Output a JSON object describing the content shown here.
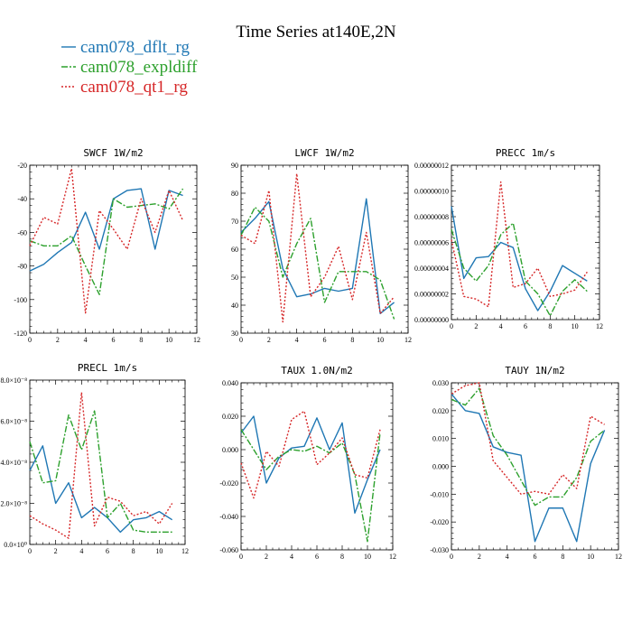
{
  "title": "Time Series at140E,2N",
  "colors": {
    "dflt": "#1f77b4",
    "expldiff": "#2ca02c",
    "qt1": "#d62728"
  },
  "legend": [
    {
      "label": "cam078_dflt_rg",
      "color": "#1f77b4",
      "dash": "solid"
    },
    {
      "label": "cam078_expldiff",
      "color": "#2ca02c",
      "dash": "dashdot"
    },
    {
      "label": "cam078_qt1_rg",
      "color": "#d62728",
      "dash": "dotted"
    }
  ],
  "chart_data": [
    {
      "type": "line",
      "title": "SWCF   1W/m2",
      "x": [
        0,
        1,
        2,
        3,
        4,
        5,
        6,
        7,
        8,
        9,
        10,
        11
      ],
      "xlim": [
        0,
        12
      ],
      "xticks": [
        0,
        2,
        4,
        6,
        8,
        10,
        12
      ],
      "xtick_labels": [
        "0",
        "2",
        "4",
        "6",
        "8",
        "10",
        "12"
      ],
      "ylim": [
        -120,
        -20
      ],
      "yticks": [
        -120,
        -100,
        -80,
        -60,
        -40,
        -20
      ],
      "ytick_labels": [
        "-120",
        "-100",
        "-80",
        "-60",
        "-40",
        "-20"
      ],
      "series": [
        {
          "name": "cam078_dflt_rg",
          "values": [
            -83,
            -79,
            -72,
            -66,
            -48,
            -70,
            -40,
            -35,
            -34,
            -70,
            -35,
            -38
          ]
        },
        {
          "name": "cam078_expldiff",
          "values": [
            -65,
            -68,
            -68,
            -62,
            -80,
            -97,
            -40,
            -45,
            -44,
            -43,
            -46,
            -34
          ]
        },
        {
          "name": "cam078_qt1_rg",
          "values": [
            -68,
            -51,
            -55,
            -22,
            -108,
            -47,
            -58,
            -70,
            -40,
            -60,
            -35,
            -53
          ]
        }
      ]
    },
    {
      "type": "line",
      "title": "LWCF   1W/m2",
      "x": [
        0,
        1,
        2,
        3,
        4,
        5,
        6,
        7,
        8,
        9,
        10,
        11
      ],
      "xlim": [
        0,
        12
      ],
      "xticks": [
        0,
        2,
        4,
        6,
        8,
        10,
        12
      ],
      "xtick_labels": [
        "0",
        "2",
        "4",
        "6",
        "8",
        "10",
        "12"
      ],
      "ylim": [
        30,
        90
      ],
      "yticks": [
        30,
        40,
        50,
        60,
        70,
        80,
        90
      ],
      "ytick_labels": [
        "30",
        "40",
        "50",
        "60",
        "70",
        "80",
        "90"
      ],
      "series": [
        {
          "name": "cam078_dflt_rg",
          "values": [
            66,
            71,
            77,
            53,
            43,
            44,
            46,
            45,
            46,
            78,
            37,
            41
          ]
        },
        {
          "name": "cam078_expldiff",
          "values": [
            65,
            75,
            70,
            50,
            62,
            71,
            41,
            52,
            52,
            52,
            49,
            35
          ]
        },
        {
          "name": "cam078_qt1_rg",
          "values": [
            65,
            62,
            81,
            34,
            87,
            43,
            50,
            61,
            42,
            66,
            37,
            43
          ]
        }
      ]
    },
    {
      "type": "line",
      "title": "PRECC   1m/s",
      "x": [
        0,
        1,
        2,
        3,
        4,
        5,
        6,
        7,
        8,
        9,
        10,
        11
      ],
      "xlim": [
        0,
        12
      ],
      "xticks": [
        0,
        2,
        4,
        6,
        8,
        10,
        12
      ],
      "xtick_labels": [
        "0",
        "2",
        "4",
        "6",
        "8",
        "10",
        "12"
      ],
      "ylim": [
        0,
        1.2e-07
      ],
      "yticks": [
        0,
        2e-08,
        4e-08,
        6e-08,
        8e-08,
        1e-07,
        1.2e-07
      ],
      "ytick_labels": [
        "0.00000000",
        "0.00000002",
        "0.00000004",
        "0.00000006",
        "0.00000008",
        "0.00000010",
        "0.00000012"
      ],
      "series": [
        {
          "name": "cam078_dflt_rg",
          "values": [
            8.8e-08,
            3.2e-08,
            4.8e-08,
            4.9e-08,
            6e-08,
            5.6e-08,
            2.4e-08,
            7e-09,
            2.2e-08,
            4.2e-08,
            3.6e-08,
            3e-08
          ]
        },
        {
          "name": "cam078_expldiff",
          "values": [
            7e-08,
            4e-08,
            3e-08,
            4.2e-08,
            6.6e-08,
            7.5e-08,
            3e-08,
            2e-08,
            3e-09,
            2.2e-08,
            3.1e-08,
            2.2e-08
          ]
        },
        {
          "name": "cam078_qt1_rg",
          "values": [
            6.2e-08,
            1.8e-08,
            1.6e-08,
            1e-08,
            1.07e-07,
            2.5e-08,
            2.8e-08,
            4e-08,
            1.8e-08,
            2e-08,
            2.3e-08,
            3.7e-08
          ]
        }
      ]
    },
    {
      "type": "line",
      "title": "PRECL   1m/s",
      "x": [
        0,
        1,
        2,
        3,
        4,
        5,
        6,
        7,
        8,
        9,
        10,
        11
      ],
      "xlim": [
        0,
        12
      ],
      "xticks": [
        0,
        2,
        4,
        6,
        8,
        10,
        12
      ],
      "xtick_labels": [
        "0",
        "2",
        "4",
        "6",
        "8",
        "10",
        "12"
      ],
      "ylim": [
        0,
        8e-08
      ],
      "yticks": [
        0,
        2e-08,
        4e-08,
        6e-08,
        8e-08
      ],
      "ytick_labels": [
        "0.0×10⁰",
        "2.0×10⁻⁸",
        "4.0×10⁻⁸",
        "6.0×10⁻⁸",
        "8.0×10⁻⁸"
      ],
      "series": [
        {
          "name": "cam078_dflt_rg",
          "values": [
            3.6e-08,
            4.8e-08,
            2e-08,
            3e-08,
            1.3e-08,
            1.8e-08,
            1.3e-08,
            6e-09,
            1.2e-08,
            1.3e-08,
            1.6e-08,
            1.2e-08
          ]
        },
        {
          "name": "cam078_expldiff",
          "values": [
            5e-08,
            3e-08,
            3.1e-08,
            6.3e-08,
            4.6e-08,
            6.5e-08,
            1.3e-08,
            2e-08,
            7e-09,
            6e-09,
            6e-09,
            6e-09
          ]
        },
        {
          "name": "cam078_qt1_rg",
          "values": [
            1.4e-08,
            1e-08,
            7e-09,
            3e-09,
            7.4e-08,
            9e-09,
            2.3e-08,
            2.1e-08,
            1.4e-08,
            1.6e-08,
            1e-08,
            2e-08
          ]
        }
      ]
    },
    {
      "type": "line",
      "title": "TAUX   1.0N/m2",
      "x": [
        0,
        1,
        2,
        3,
        4,
        5,
        6,
        7,
        8,
        9,
        10,
        11
      ],
      "xlim": [
        0,
        12
      ],
      "xticks": [
        0,
        2,
        4,
        6,
        8,
        10,
        12
      ],
      "xtick_labels": [
        "0",
        "2",
        "4",
        "6",
        "8",
        "10",
        "12"
      ],
      "ylim": [
        -0.06,
        0.04
      ],
      "yticks": [
        -0.06,
        -0.04,
        -0.02,
        0,
        0.02,
        0.04
      ],
      "ytick_labels": [
        "-0.060",
        "-0.040",
        "-0.020",
        "0.000",
        "0.020",
        "0.040"
      ],
      "series": [
        {
          "name": "cam078_dflt_rg",
          "values": [
            0.01,
            0.02,
            -0.02,
            -0.005,
            0.001,
            0.002,
            0.019,
            0.0,
            0.016,
            -0.038,
            -0.018,
            0.0
          ]
        },
        {
          "name": "cam078_expldiff",
          "values": [
            0.012,
            0.0,
            -0.012,
            -0.004,
            0.0,
            -0.001,
            0.002,
            -0.002,
            0.004,
            -0.015,
            -0.055,
            0.01
          ]
        },
        {
          "name": "cam078_qt1_rg",
          "values": [
            -0.008,
            -0.029,
            -0.001,
            -0.01,
            0.018,
            0.023,
            -0.009,
            -0.002,
            0.007,
            -0.015,
            -0.017,
            0.012
          ]
        }
      ]
    },
    {
      "type": "line",
      "title": "TAUY   1N/m2",
      "x": [
        0,
        1,
        2,
        3,
        4,
        5,
        6,
        7,
        8,
        9,
        10,
        11
      ],
      "xlim": [
        0,
        12
      ],
      "xticks": [
        0,
        2,
        4,
        6,
        8,
        10,
        12
      ],
      "xtick_labels": [
        "0",
        "2",
        "4",
        "6",
        "8",
        "10",
        "12"
      ],
      "ylim": [
        -0.03,
        0.03
      ],
      "yticks": [
        -0.03,
        -0.02,
        -0.01,
        0,
        0.01,
        0.02,
        0.03
      ],
      "ytick_labels": [
        "-0.030",
        "-0.020",
        "-0.010",
        "0.000",
        "0.010",
        "0.020",
        "0.030"
      ],
      "series": [
        {
          "name": "cam078_dflt_rg",
          "values": [
            0.026,
            0.02,
            0.019,
            0.007,
            0.005,
            0.004,
            -0.027,
            -0.015,
            -0.015,
            -0.027,
            0.001,
            0.013
          ]
        },
        {
          "name": "cam078_expldiff",
          "values": [
            0.024,
            0.022,
            0.028,
            0.011,
            0.004,
            -0.005,
            -0.014,
            -0.011,
            -0.011,
            -0.004,
            0.009,
            0.013
          ]
        },
        {
          "name": "cam078_qt1_rg",
          "values": [
            0.026,
            0.029,
            0.03,
            0.002,
            -0.004,
            -0.01,
            -0.009,
            -0.01,
            -0.003,
            -0.008,
            0.018,
            0.015
          ]
        }
      ]
    }
  ]
}
